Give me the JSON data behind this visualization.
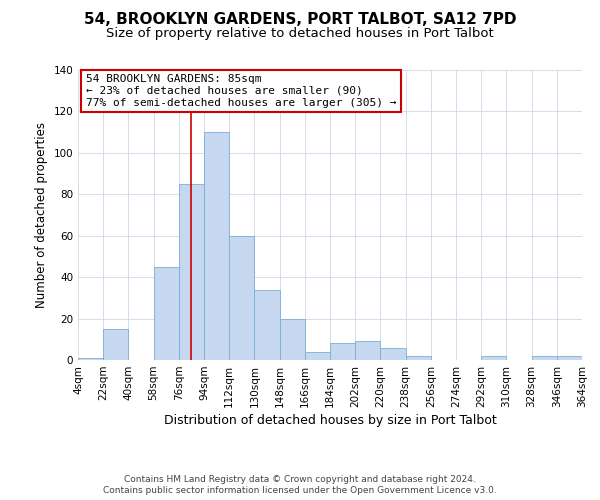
{
  "title": "54, BROOKLYN GARDENS, PORT TALBOT, SA12 7PD",
  "subtitle": "Size of property relative to detached houses in Port Talbot",
  "xlabel": "Distribution of detached houses by size in Port Talbot",
  "ylabel": "Number of detached properties",
  "bin_edges": [
    4,
    22,
    40,
    58,
    76,
    94,
    112,
    130,
    148,
    166,
    184,
    202,
    220,
    238,
    256,
    274,
    292,
    310,
    328,
    346,
    364
  ],
  "bar_heights": [
    1,
    15,
    0,
    45,
    85,
    110,
    60,
    34,
    20,
    4,
    8,
    9,
    6,
    2,
    0,
    0,
    2,
    0,
    2,
    2
  ],
  "bar_color": "#c5d8f0",
  "bar_edge_color": "#7badd4",
  "property_size": 85,
  "vline_color": "#cc0000",
  "ylim": [
    0,
    140
  ],
  "yticks": [
    0,
    20,
    40,
    60,
    80,
    100,
    120,
    140
  ],
  "tick_labels": [
    "4sqm",
    "22sqm",
    "40sqm",
    "58sqm",
    "76sqm",
    "94sqm",
    "112sqm",
    "130sqm",
    "148sqm",
    "166sqm",
    "184sqm",
    "202sqm",
    "220sqm",
    "238sqm",
    "256sqm",
    "274sqm",
    "292sqm",
    "310sqm",
    "328sqm",
    "346sqm",
    "364sqm"
  ],
  "annotation_title": "54 BROOKLYN GARDENS: 85sqm",
  "annotation_line1": "← 23% of detached houses are smaller (90)",
  "annotation_line2": "77% of semi-detached houses are larger (305) →",
  "annotation_box_color": "#ffffff",
  "annotation_box_edge_color": "#cc0000",
  "footer1": "Contains HM Land Registry data © Crown copyright and database right 2024.",
  "footer2": "Contains public sector information licensed under the Open Government Licence v3.0.",
  "background_color": "#ffffff",
  "grid_color": "#d0d8e8",
  "title_fontsize": 11,
  "subtitle_fontsize": 9.5,
  "xlabel_fontsize": 9,
  "ylabel_fontsize": 8.5,
  "tick_fontsize": 7.5,
  "annotation_fontsize": 8,
  "footer_fontsize": 6.5
}
